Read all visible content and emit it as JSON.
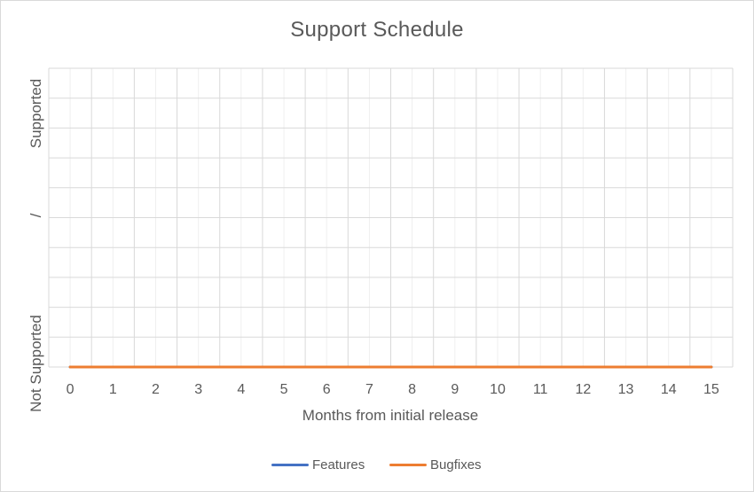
{
  "chart_data": {
    "type": "line",
    "title": "Support Schedule",
    "xlabel": "Months from initial release",
    "ylabel": "Not Supported / Supported",
    "ylabel_parts": [
      "Not Supported",
      "/",
      "Supported"
    ],
    "x": [
      0,
      1,
      2,
      3,
      4,
      5,
      6,
      7,
      8,
      9,
      10,
      11,
      12,
      13,
      14,
      15
    ],
    "xlim": [
      0,
      15
    ],
    "ylim": [
      0,
      1
    ],
    "grid": true,
    "legend_position": "bottom",
    "series": [
      {
        "name": "Features",
        "color": "#4472C4",
        "values": [
          0,
          0,
          0,
          0,
          0,
          0,
          0,
          0,
          0,
          0,
          0,
          0,
          0,
          0,
          0,
          0
        ]
      },
      {
        "name": "Bugfixes",
        "color": "#ED7D31",
        "values": [
          0,
          0,
          0,
          0,
          0,
          0,
          0,
          0,
          0,
          0,
          0,
          0,
          0,
          0,
          0,
          0
        ]
      }
    ]
  }
}
